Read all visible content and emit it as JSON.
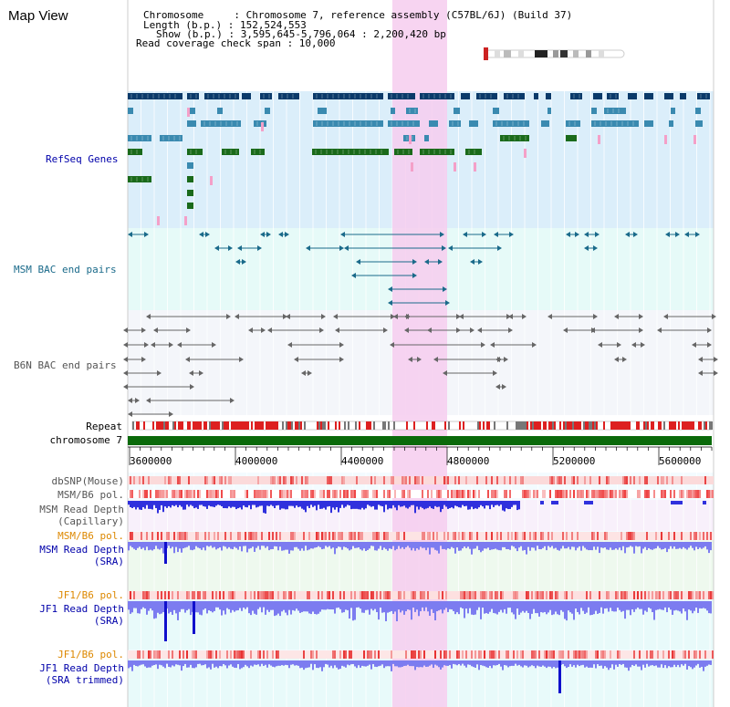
{
  "app": {
    "title": "Map View"
  },
  "header": {
    "lines": [
      "Chromosome     : Chromosome 7, reference assembly (C57BL/6J) (Build 37)",
      "Length (b.p.) : 152,524,553",
      "Show (b.p.) : 3,595,645-5,796,064 : 2,200,420 bp",
      "Read coverage check span : 10,000"
    ]
  },
  "tracks": {
    "refseq": {
      "label": "RefSeq Genes",
      "color": "#0000aa"
    },
    "msm_bac": {
      "label": "MSM BAC end pairs",
      "color": "#1a6a8a"
    },
    "b6n_bac": {
      "label": "B6N BAC end pairs",
      "color": "#555555"
    },
    "repeat": {
      "label": "Repeat"
    },
    "chromosome": {
      "label": "chromosome 7"
    },
    "axis": {
      "ticks": [
        "3600000",
        "4000000",
        "4400000",
        "4800000",
        "5200000",
        "5600000"
      ]
    },
    "dbsnp": {
      "label": "dbSNP(Mouse)"
    },
    "msm_b6_pol_1": {
      "label": "MSM/B6 pol."
    },
    "msm_read_depth_cap": {
      "label_1": "MSM Read Depth",
      "label_2": "(Capillary)"
    },
    "msm_b6_pol_2": {
      "label": "MSM/B6 pol."
    },
    "msm_read_depth_sra": {
      "label_1": "MSM Read Depth",
      "label_2": "(SRA)"
    },
    "jf1_b6_pol_1": {
      "label": "JF1/B6 pol."
    },
    "jf1_read_depth_sra": {
      "label_1": "JF1 Read Depth",
      "label_2": "(SRA)"
    },
    "jf1_b6_pol_2": {
      "label": "JF1/B6 pol."
    },
    "jf1_read_depth_trim": {
      "label_1": "JF1 Read Depth",
      "label_2": "(SRA trimmed)"
    }
  },
  "colors": {
    "refseq_bg": "#dbeefa",
    "msm_bac_bg": "#e6faf8",
    "b6n_bg": "#f4f6fa",
    "highlight": "#f6cdee",
    "gene_dark": "#0a3a6a",
    "gene_mid": "#3a8ab0",
    "gene_green": "#1a6a1a",
    "pink_mark": "#f4a0c8",
    "repeat_red": "#dd2020",
    "chrom_green": "#0a6a0a",
    "depth_cap": "#3030dd",
    "depth_sra": "#7c7cf0",
    "label_orange": "#dd8800",
    "label_blue": "#0000aa",
    "label_gray": "#555555"
  }
}
